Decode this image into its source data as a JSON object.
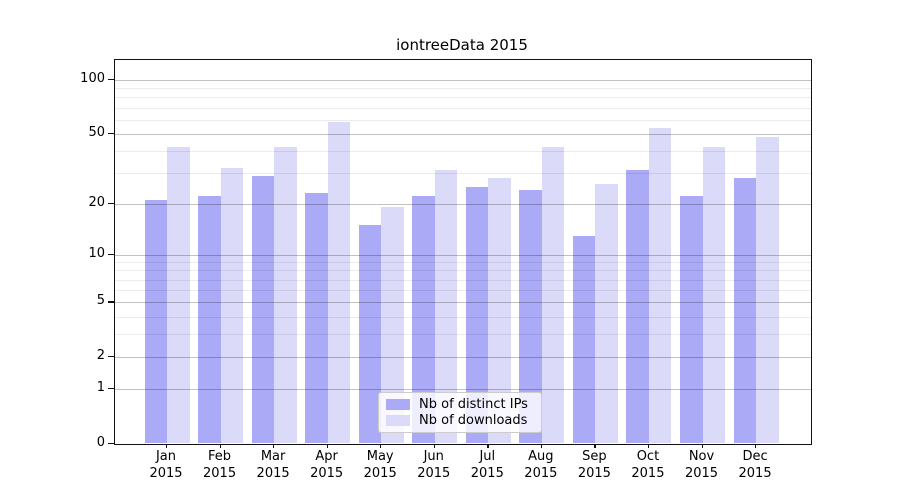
{
  "title": "iontreeData 2015",
  "year_label": "2015",
  "axes": {
    "y_tick_labels": [
      "100",
      "50",
      "20",
      "10",
      "5",
      "2",
      "1",
      "0"
    ],
    "x_months": [
      "Jan",
      "Feb",
      "Mar",
      "Apr",
      "May",
      "Jun",
      "Jul",
      "Aug",
      "Sep",
      "Oct",
      "Nov",
      "Dec"
    ]
  },
  "legend": {
    "items": [
      {
        "label": "Nb of distinct IPs",
        "color": "#aaaaf7"
      },
      {
        "label": "Nb of downloads",
        "color": "#dbdbf9"
      }
    ]
  },
  "chart_data": {
    "type": "bar",
    "title": "iontreeData 2015",
    "categories": [
      "Jan 2015",
      "Feb 2015",
      "Mar 2015",
      "Apr 2015",
      "May 2015",
      "Jun 2015",
      "Jul 2015",
      "Aug 2015",
      "Sep 2015",
      "Oct 2015",
      "Nov 2015",
      "Dec 2015"
    ],
    "series": [
      {
        "name": "Nb of distinct IPs",
        "color": "#aaaaf7",
        "values": [
          21,
          22,
          29,
          23,
          15,
          22,
          25,
          24,
          13,
          31,
          22,
          28
        ]
      },
      {
        "name": "Nb of downloads",
        "color": "#dbdbf9",
        "values": [
          42,
          32,
          42,
          58,
          19,
          31,
          28,
          42,
          26,
          54,
          42,
          48
        ]
      }
    ],
    "xlabel": "",
    "ylabel": "",
    "yscale": "log1p",
    "ylim": [
      0,
      129
    ],
    "yticks": [
      0,
      1,
      2,
      5,
      10,
      20,
      50,
      100
    ],
    "yticks_minor": [
      3,
      4,
      6,
      7,
      8,
      9,
      30,
      40,
      60,
      70,
      80,
      90
    ],
    "grid": true,
    "grid_over_bars": true,
    "legend_position": "lower center"
  }
}
